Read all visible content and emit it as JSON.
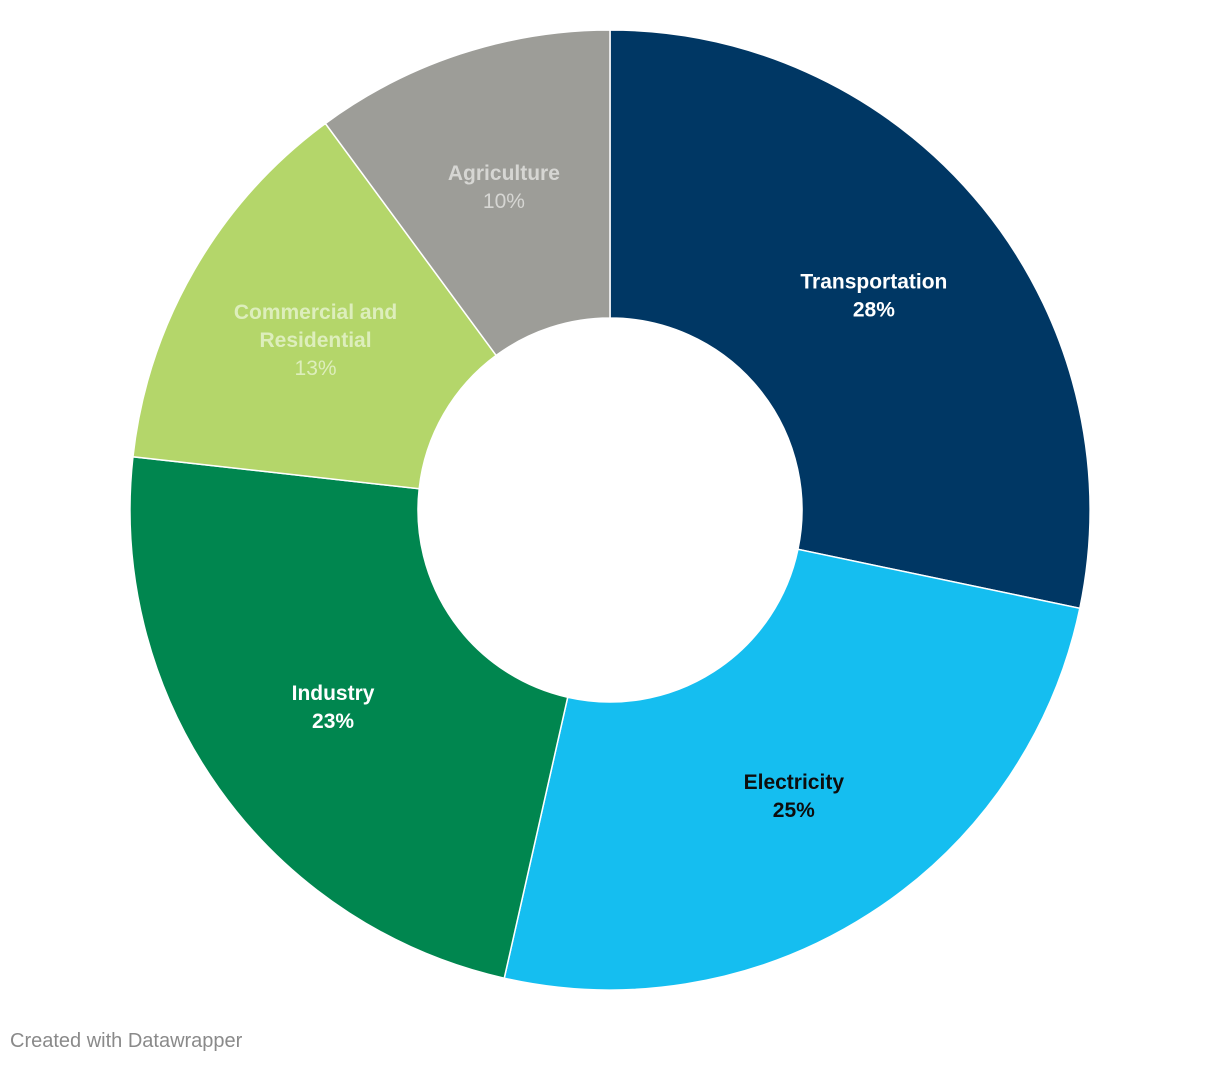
{
  "chart_data": {
    "type": "pie",
    "style": "donut",
    "title": "",
    "slices": [
      {
        "label": "Transportation",
        "value": 28,
        "value_label": "28%",
        "color": "#003764",
        "label_color": "#ffffff",
        "value_weight": "bold"
      },
      {
        "label": "Electricity",
        "value": 25,
        "value_label": "25%",
        "color": "#15bef0",
        "label_color": "#0d0d0d",
        "value_weight": "bold"
      },
      {
        "label": "Industry",
        "value": 23,
        "value_label": "23%",
        "color": "#00864f",
        "label_color": "#ffffff",
        "value_weight": "bold"
      },
      {
        "label": "Commercial and Residential",
        "value": 13,
        "value_label": "13%",
        "color": "#b4d66a",
        "label_color": "#ddeebc",
        "value_weight": "normal"
      },
      {
        "label": "Agriculture",
        "value": 10,
        "value_label": "10%",
        "color": "#9d9d98",
        "label_color": "#d6d6d3",
        "value_weight": "normal"
      }
    ]
  },
  "footer": {
    "credit": "Created with Datawrapper"
  }
}
